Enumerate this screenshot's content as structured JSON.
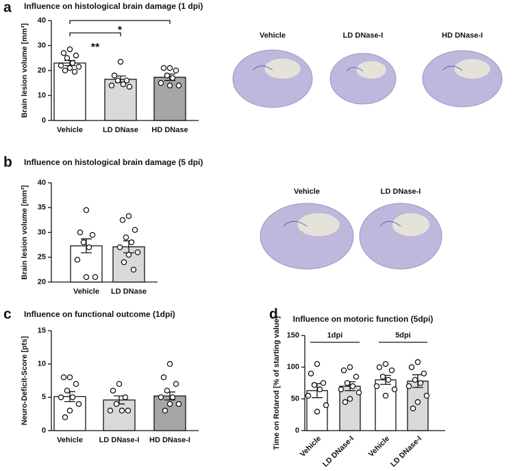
{
  "chart_data": [
    {
      "type": "bar",
      "panel": "a",
      "title": "Influence on histological brain damage (1 dpi)",
      "ylabel": "Brain lesion volume [mm³]",
      "categories": [
        "Vehicle",
        "LD DNase",
        "HD DNase"
      ],
      "values": [
        23,
        16.5,
        17.3
      ],
      "errors": [
        1,
        1.3,
        1.3
      ],
      "points": [
        [
          28.5,
          27,
          26,
          25,
          23,
          22,
          21.5,
          21,
          20,
          19.5
        ],
        [
          23.5,
          18,
          16,
          16,
          14.5,
          14,
          13.5
        ],
        [
          21,
          21,
          20,
          18,
          17,
          15,
          14,
          14
        ]
      ],
      "colors": [
        "#ffffff",
        "#d9d9d9",
        "#a6a6a6"
      ],
      "ylim": [
        0,
        40
      ],
      "yticks": [
        0,
        10,
        20,
        30,
        40
      ],
      "annotations": [
        "**",
        "*"
      ],
      "image_labels": [
        "Vehicle",
        "LD DNase-I",
        "HD DNase-I"
      ]
    },
    {
      "type": "bar",
      "panel": "b",
      "title": "Influence on histological brain damage (5 dpi)",
      "ylabel": "Brain lesion volume [mm³]",
      "categories": [
        "Vehicle",
        "LD DNase"
      ],
      "values": [
        27.3,
        27.1
      ],
      "errors": [
        1.4,
        1.2
      ],
      "points": [
        [
          34.5,
          30,
          29.5,
          28,
          27,
          24.5,
          21,
          21
        ],
        [
          33.3,
          32.5,
          30.5,
          29,
          28,
          27,
          26,
          25.5,
          24,
          22.5
        ]
      ],
      "colors": [
        "#ffffff",
        "#d9d9d9"
      ],
      "ylim": [
        20,
        40
      ],
      "yticks": [
        20,
        25,
        30,
        35,
        40
      ],
      "image_labels": [
        "Vehicle",
        "LD DNase-I"
      ]
    },
    {
      "type": "bar",
      "panel": "c",
      "title": "Influence on functional outcome (1dpi)",
      "ylabel": "Neuro-Deficit-Score [pts]",
      "categories": [
        "Vehicle",
        "LD DNase-I",
        "HD DNase-I"
      ],
      "values": [
        5.1,
        4.6,
        5.2
      ],
      "errors": [
        0.75,
        0.6,
        0.6
      ],
      "points": [
        [
          8,
          8,
          7,
          6,
          5,
          5,
          4,
          3,
          2
        ],
        [
          7,
          6,
          5,
          4,
          3,
          3,
          3
        ],
        [
          10,
          8,
          7,
          6,
          5,
          5,
          4,
          4,
          3
        ]
      ],
      "colors": [
        "#ffffff",
        "#d9d9d9",
        "#a6a6a6"
      ],
      "ylim": [
        0,
        15
      ],
      "yticks": [
        0,
        5,
        10,
        15
      ]
    },
    {
      "type": "bar",
      "panel": "d",
      "title": "Influence on motoric function (5dpi)",
      "ylabel": "Time on Rotarod [% of starting value]",
      "categories": [
        "Vehicle",
        "LD DNase-I",
        "Vehicle",
        "LD DNase-I"
      ],
      "values": [
        63,
        70,
        80,
        78
      ],
      "errors": [
        11,
        7,
        7,
        10
      ],
      "points": [
        [
          105,
          90,
          75,
          72,
          65,
          55,
          40,
          30
        ],
        [
          100,
          95,
          85,
          75,
          70,
          65,
          60,
          50,
          45
        ],
        [
          105,
          100,
          95,
          85,
          80,
          70,
          65,
          55
        ],
        [
          108,
          100,
          90,
          80,
          75,
          70,
          55,
          45,
          35
        ]
      ],
      "colors": [
        "#ffffff",
        "#d9d9d9",
        "#ffffff",
        "#d9d9d9"
      ],
      "ylim": [
        0,
        150
      ],
      "yticks": [
        0,
        50,
        100,
        150
      ],
      "groups": [
        "1dpi",
        "5dpi"
      ]
    }
  ]
}
